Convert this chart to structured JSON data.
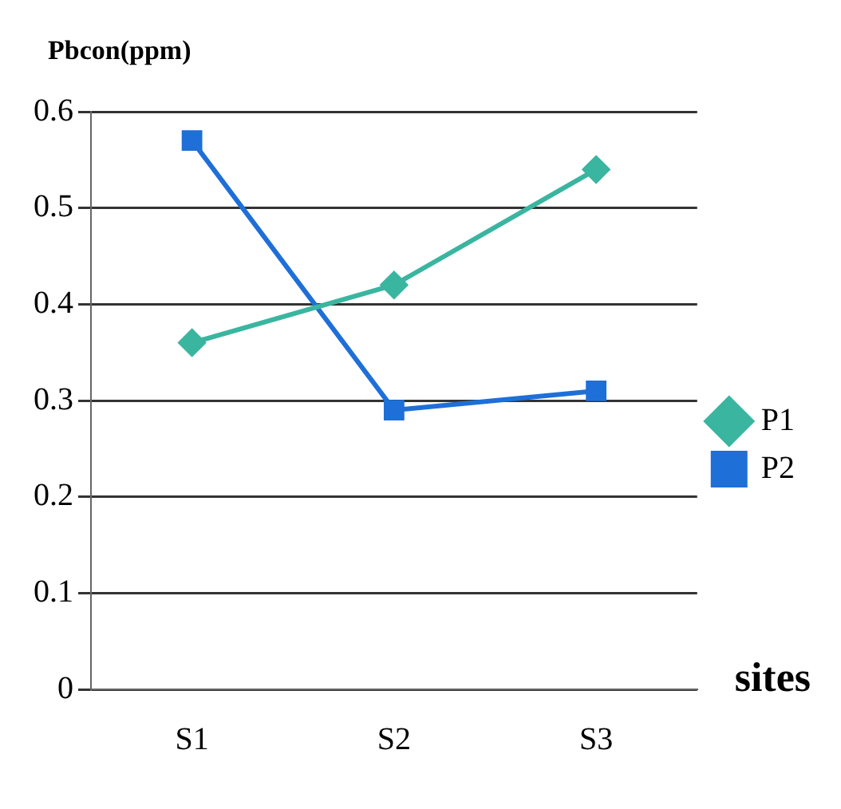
{
  "chart_data": {
    "type": "line",
    "ylabel": "Pbcon(ppm)",
    "xlabel": "sites",
    "categories": [
      "S1",
      "S2",
      "S3"
    ],
    "series": [
      {
        "name": "P1",
        "color": "#3ab5a0",
        "marker": "diamond",
        "values": [
          0.36,
          0.42,
          0.54
        ]
      },
      {
        "name": "P2",
        "color": "#1e6fd8",
        "marker": "square",
        "values": [
          0.57,
          0.29,
          0.31
        ]
      }
    ],
    "ylim": [
      0,
      0.6
    ],
    "yticks": [
      0,
      0.1,
      0.2,
      0.3,
      0.4,
      0.5,
      0.6
    ],
    "grid": "y",
    "legend": "right"
  }
}
